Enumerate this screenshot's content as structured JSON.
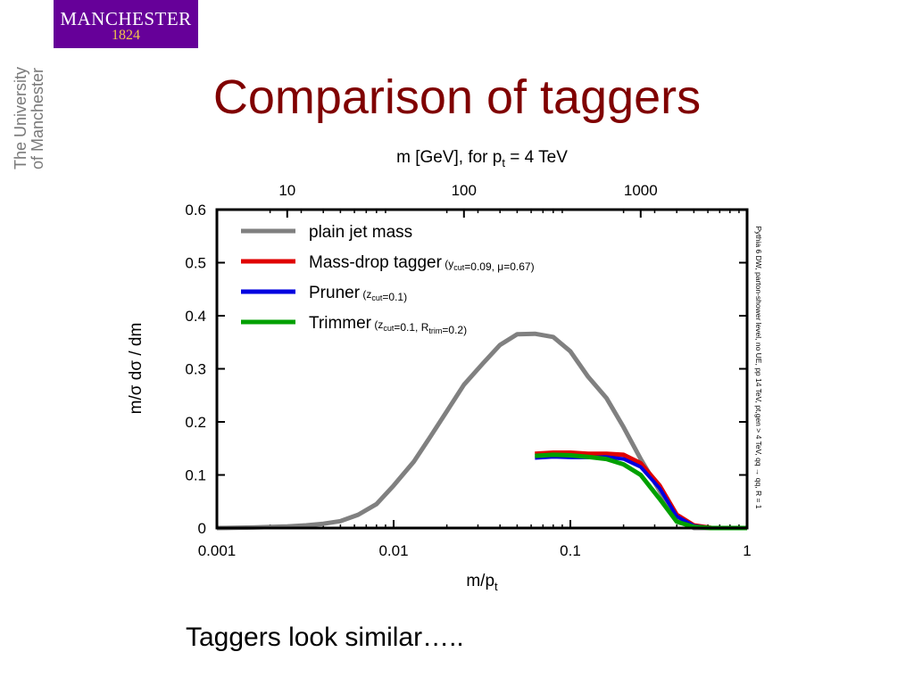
{
  "logo": {
    "word": "MANCHESTER",
    "year": "1824",
    "side_line1": "The University",
    "side_line2": "of Manchester"
  },
  "slide": {
    "title": "Comparison of taggers",
    "caption": "Taggers look similar….."
  },
  "colors": {
    "title": "#800000",
    "plain": "#808080",
    "mdt": "#e00000",
    "pruner": "#0000e0",
    "trimmer": "#00a000",
    "logo_bg": "#660099",
    "logo_year": "#f0c64b"
  },
  "chart_data": {
    "type": "line",
    "x_scale": "log",
    "xlim": [
      0.001,
      1
    ],
    "ylim": [
      0,
      0.6
    ],
    "xticks": [
      {
        "value": 0.001,
        "label": "0.001"
      },
      {
        "value": 0.01,
        "label": "0.01"
      },
      {
        "value": 0.1,
        "label": "0.1"
      },
      {
        "value": 1,
        "label": "1"
      }
    ],
    "yticks": [
      {
        "value": 0,
        "label": "0"
      },
      {
        "value": 0.1,
        "label": "0.1"
      },
      {
        "value": 0.2,
        "label": "0.2"
      },
      {
        "value": 0.3,
        "label": "0.3"
      },
      {
        "value": 0.4,
        "label": "0.4"
      },
      {
        "value": 0.5,
        "label": "0.5"
      },
      {
        "value": 0.6,
        "label": "0.6"
      }
    ],
    "xlabel_main": "m/p",
    "xlabel_sub": "t",
    "ylabel": "m/σ dσ / dm",
    "top_axis": {
      "label_main": "m [GeV], for p",
      "label_sub": "t",
      "label_tail": " = 4 TeV",
      "pt_tev": 4,
      "ticks": [
        {
          "value": 10,
          "label": "10"
        },
        {
          "value": 100,
          "label": "100"
        },
        {
          "value": 1000,
          "label": "1000"
        }
      ]
    },
    "side_note": "Pythia 6 DW, parton-shower level, no UE, pp 14 TeV, pt,gen > 4 TeV, qq → qq, R = 1",
    "legend": {
      "placement": "top-left",
      "entries": [
        {
          "series": 0,
          "name": "plain jet mass",
          "parts": []
        },
        {
          "series": 1,
          "name": "Mass-drop tagger",
          "parts": [
            {
              "t": "("
            },
            {
              "t": "y"
            },
            {
              "t": "cut",
              "sub": true
            },
            {
              "t": "=0.09, μ=0.67)"
            }
          ]
        },
        {
          "series": 2,
          "name": "Pruner",
          "parts": [
            {
              "t": "("
            },
            {
              "t": "z"
            },
            {
              "t": "cut",
              "sub": true
            },
            {
              "t": "=0.1)"
            }
          ]
        },
        {
          "series": 3,
          "name": "Trimmer",
          "parts": [
            {
              "t": "("
            },
            {
              "t": "z"
            },
            {
              "t": "cut",
              "sub": true
            },
            {
              "t": "=0.1, R"
            },
            {
              "t": "trim",
              "sub": true
            },
            {
              "t": "=0.2)"
            }
          ]
        }
      ]
    },
    "series": [
      {
        "name": "plain jet mass",
        "color": "#808080",
        "x": [
          0.001,
          0.0016,
          0.0025,
          0.0032,
          0.004,
          0.005,
          0.0063,
          0.008,
          0.01,
          0.013,
          0.016,
          0.02,
          0.025,
          0.032,
          0.04,
          0.05,
          0.063,
          0.08,
          0.1,
          0.126,
          0.16,
          0.2,
          0.25,
          0.32,
          0.4,
          0.5,
          0.63,
          0.8,
          1.0
        ],
        "y": [
          0.0,
          0.001,
          0.003,
          0.005,
          0.008,
          0.013,
          0.025,
          0.045,
          0.08,
          0.125,
          0.17,
          0.22,
          0.27,
          0.31,
          0.345,
          0.365,
          0.366,
          0.36,
          0.333,
          0.285,
          0.245,
          0.19,
          0.13,
          0.07,
          0.02,
          0.0,
          0.0,
          0.0,
          0.0
        ]
      },
      {
        "name": "Mass-drop tagger",
        "color": "#e00000",
        "x": [
          0.063,
          0.08,
          0.1,
          0.126,
          0.16,
          0.2,
          0.25,
          0.32,
          0.4,
          0.5,
          0.63,
          0.8,
          1.0
        ],
        "y": [
          0.14,
          0.142,
          0.142,
          0.14,
          0.14,
          0.138,
          0.122,
          0.08,
          0.025,
          0.005,
          0.0,
          0.0,
          0.0
        ]
      },
      {
        "name": "Pruner",
        "color": "#0000e0",
        "x": [
          0.063,
          0.08,
          0.1,
          0.126,
          0.16,
          0.2,
          0.25,
          0.32,
          0.4,
          0.5,
          0.63,
          0.8,
          1.0
        ],
        "y": [
          0.132,
          0.134,
          0.133,
          0.133,
          0.134,
          0.13,
          0.115,
          0.075,
          0.022,
          0.004,
          0.0,
          0.0,
          0.0
        ]
      },
      {
        "name": "Trimmer",
        "color": "#00a000",
        "x": [
          0.063,
          0.08,
          0.1,
          0.126,
          0.16,
          0.2,
          0.25,
          0.32,
          0.4,
          0.5,
          0.63,
          0.8,
          1.0
        ],
        "y": [
          0.136,
          0.138,
          0.137,
          0.134,
          0.13,
          0.12,
          0.1,
          0.055,
          0.012,
          0.002,
          0.0,
          0.0,
          0.0
        ]
      }
    ]
  }
}
